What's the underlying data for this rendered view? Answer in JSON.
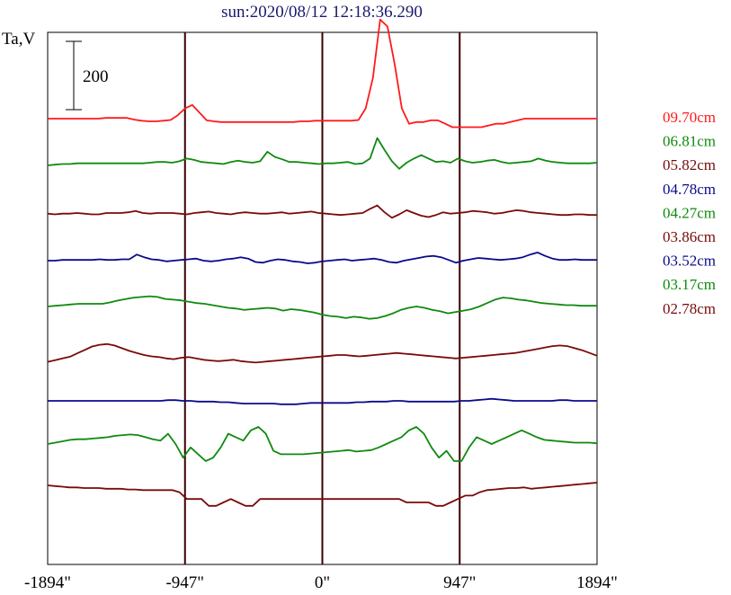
{
  "chart_data": {
    "type": "line",
    "title": "sun:2020/08/12 12:18:36.290",
    "title_color": "#1a1a6e",
    "ylabel": "Ta,V",
    "scale_bar_label": "200",
    "scale_bar_value": 200,
    "xlim": [
      -1894,
      1894
    ],
    "x_ticks": [
      {
        "value": -1894,
        "label": "-1894\""
      },
      {
        "value": -947,
        "label": "-947\""
      },
      {
        "value": 0,
        "label": "0\""
      },
      {
        "value": 947,
        "label": "947\""
      },
      {
        "value": 1894,
        "label": "1894\""
      }
    ],
    "vertical_lines": [
      -947,
      0,
      947
    ],
    "vertical_line_color": "#3a0000",
    "grid": false,
    "legend_position": "right",
    "series": [
      {
        "name": "09.70cm",
        "color": "#ff1a1a",
        "y": [
          0,
          0,
          0,
          0,
          0,
          0,
          0,
          0,
          2,
          2,
          2,
          2,
          -3,
          -6,
          -8,
          -8,
          -6,
          -4,
          10,
          30,
          40,
          18,
          -5,
          -8,
          -10,
          -10,
          -10,
          -10,
          -10,
          -10,
          -10,
          -10,
          -10,
          -10,
          -10,
          -8,
          -8,
          -6,
          -6,
          -6,
          -6,
          -6,
          -6,
          -4,
          30,
          120,
          290,
          270,
          160,
          30,
          -15,
          -10,
          -10,
          -5,
          -5,
          -15,
          -25,
          -25,
          -25,
          -25,
          -25,
          -20,
          -15,
          -15,
          -10,
          -5,
          0,
          0,
          0,
          0,
          0,
          0,
          0,
          0,
          0,
          0,
          0
        ]
      },
      {
        "name": "06.81cm",
        "color": "#0f8a0f",
        "y": [
          0,
          2,
          4,
          4,
          6,
          6,
          6,
          6,
          6,
          6,
          6,
          6,
          6,
          6,
          8,
          10,
          10,
          8,
          12,
          20,
          16,
          10,
          8,
          6,
          4,
          10,
          14,
          10,
          8,
          12,
          40,
          25,
          18,
          10,
          10,
          8,
          6,
          4,
          6,
          6,
          8,
          10,
          4,
          6,
          20,
          80,
          45,
          12,
          -10,
          8,
          20,
          30,
          20,
          10,
          12,
          8,
          20,
          12,
          8,
          10,
          14,
          16,
          10,
          6,
          8,
          10,
          12,
          20,
          14,
          10,
          8,
          6,
          6,
          6,
          6,
          8
        ]
      },
      {
        "name": "05.82cm",
        "color": "#7a0a0a",
        "y": [
          6,
          4,
          6,
          6,
          8,
          6,
          4,
          4,
          8,
          8,
          8,
          10,
          14,
          8,
          6,
          8,
          8,
          8,
          6,
          4,
          8,
          10,
          12,
          8,
          6,
          4,
          8,
          10,
          8,
          6,
          6,
          8,
          10,
          6,
          8,
          10,
          12,
          8,
          6,
          4,
          2,
          4,
          6,
          8,
          20,
          30,
          10,
          -6,
          4,
          16,
          8,
          0,
          -4,
          2,
          10,
          6,
          8,
          10,
          14,
          12,
          10,
          6,
          8,
          12,
          16,
          14,
          10,
          8,
          6,
          4,
          2,
          2,
          4,
          4,
          2,
          2
        ]
      },
      {
        "name": "04.78cm",
        "color": "#0a0a8a",
        "y": [
          0,
          0,
          2,
          2,
          2,
          2,
          2,
          4,
          2,
          2,
          4,
          4,
          18,
          10,
          4,
          2,
          -2,
          0,
          2,
          4,
          6,
          0,
          -2,
          0,
          4,
          6,
          10,
          6,
          -4,
          -6,
          0,
          4,
          2,
          -2,
          -4,
          -8,
          -6,
          -2,
          0,
          2,
          4,
          0,
          2,
          4,
          6,
          2,
          -4,
          -6,
          0,
          4,
          8,
          12,
          14,
          10,
          2,
          -6,
          0,
          4,
          8,
          6,
          4,
          2,
          4,
          6,
          10,
          18,
          24,
          14,
          6,
          2,
          2,
          4,
          2,
          2,
          2
        ]
      },
      {
        "name": "04.27cm",
        "color": "#0f8a0f",
        "y": [
          0,
          2,
          4,
          6,
          8,
          8,
          8,
          8,
          12,
          18,
          22,
          26,
          28,
          30,
          28,
          22,
          20,
          18,
          14,
          10,
          8,
          4,
          0,
          -4,
          -6,
          -10,
          -8,
          -6,
          -4,
          -6,
          -12,
          -8,
          -10,
          -14,
          -18,
          -24,
          -28,
          -30,
          -34,
          -30,
          -32,
          -36,
          -34,
          -28,
          -20,
          -10,
          -4,
          0,
          -4,
          -10,
          -14,
          -20,
          -16,
          -12,
          -8,
          0,
          10,
          20,
          26,
          24,
          20,
          18,
          14,
          10,
          8,
          6,
          4,
          4,
          2,
          2,
          2
        ]
      },
      {
        "name": "03.86cm",
        "color": "#7a0a0a",
        "y": [
          -20,
          -15,
          -10,
          -5,
          5,
          15,
          25,
          30,
          32,
          28,
          20,
          12,
          6,
          0,
          -4,
          -6,
          -10,
          -12,
          -8,
          -6,
          -10,
          -14,
          -16,
          -18,
          -16,
          -14,
          -18,
          -20,
          -22,
          -20,
          -18,
          -16,
          -14,
          -12,
          -10,
          -8,
          -6,
          -4,
          -2,
          0,
          0,
          -2,
          -4,
          -2,
          0,
          2,
          4,
          6,
          4,
          2,
          0,
          -2,
          -4,
          -6,
          -8,
          -10,
          -8,
          -6,
          -4,
          -2,
          0,
          2,
          4,
          6,
          10,
          14,
          18,
          22,
          26,
          28,
          26,
          20,
          14,
          6,
          -2
        ]
      },
      {
        "name": "03.52cm",
        "color": "#0a0a8a",
        "y": [
          0,
          0,
          0,
          0,
          0,
          0,
          0,
          0,
          0,
          0,
          0,
          0,
          0,
          0,
          0,
          0,
          2,
          2,
          0,
          0,
          -2,
          -2,
          -2,
          -4,
          -4,
          -6,
          -8,
          -8,
          -8,
          -8,
          -8,
          -10,
          -10,
          -10,
          -8,
          -6,
          -6,
          -6,
          -6,
          -6,
          -6,
          -4,
          -4,
          -2,
          -2,
          -2,
          0,
          0,
          -2,
          -2,
          -2,
          -2,
          -2,
          -2,
          -2,
          0,
          0,
          2,
          4,
          6,
          4,
          2,
          0,
          0,
          0,
          0,
          0,
          0,
          2,
          2,
          0,
          0,
          0,
          0
        ]
      },
      {
        "name": "03.17cm",
        "color": "#0f8a0f",
        "y": [
          0,
          4,
          8,
          12,
          14,
          14,
          16,
          18,
          20,
          24,
          26,
          28,
          26,
          20,
          14,
          10,
          30,
          0,
          -40,
          -10,
          -30,
          -50,
          -40,
          -10,
          30,
          20,
          10,
          40,
          50,
          30,
          -20,
          -30,
          -30,
          -30,
          -30,
          -28,
          -26,
          -24,
          -22,
          -20,
          -18,
          -22,
          -20,
          -18,
          -10,
          0,
          10,
          20,
          40,
          50,
          30,
          -10,
          -40,
          -20,
          -50,
          -50,
          -10,
          20,
          10,
          0,
          10,
          20,
          30,
          40,
          30,
          20,
          12,
          10,
          8,
          6,
          4,
          4,
          4,
          2
        ]
      },
      {
        "name": "02.78cm",
        "color": "#7a0a0a",
        "y": [
          0,
          -2,
          -4,
          -6,
          -6,
          -8,
          -8,
          -8,
          -10,
          -10,
          -10,
          -12,
          -12,
          -14,
          -14,
          -14,
          -14,
          -14,
          -20,
          -40,
          -40,
          -40,
          -60,
          -60,
          -50,
          -40,
          -50,
          -60,
          -60,
          -40,
          -40,
          -40,
          -40,
          -40,
          -40,
          -40,
          -40,
          -40,
          -40,
          -40,
          -40,
          -40,
          -40,
          -40,
          -40,
          -40,
          -40,
          -40,
          -40,
          -50,
          -50,
          -50,
          -50,
          -60,
          -60,
          -50,
          -40,
          -30,
          -30,
          -20,
          -14,
          -12,
          -10,
          -8,
          -8,
          -6,
          -10,
          -8,
          -6,
          -4,
          -2,
          0,
          2,
          4,
          6,
          8
        ]
      }
    ]
  }
}
